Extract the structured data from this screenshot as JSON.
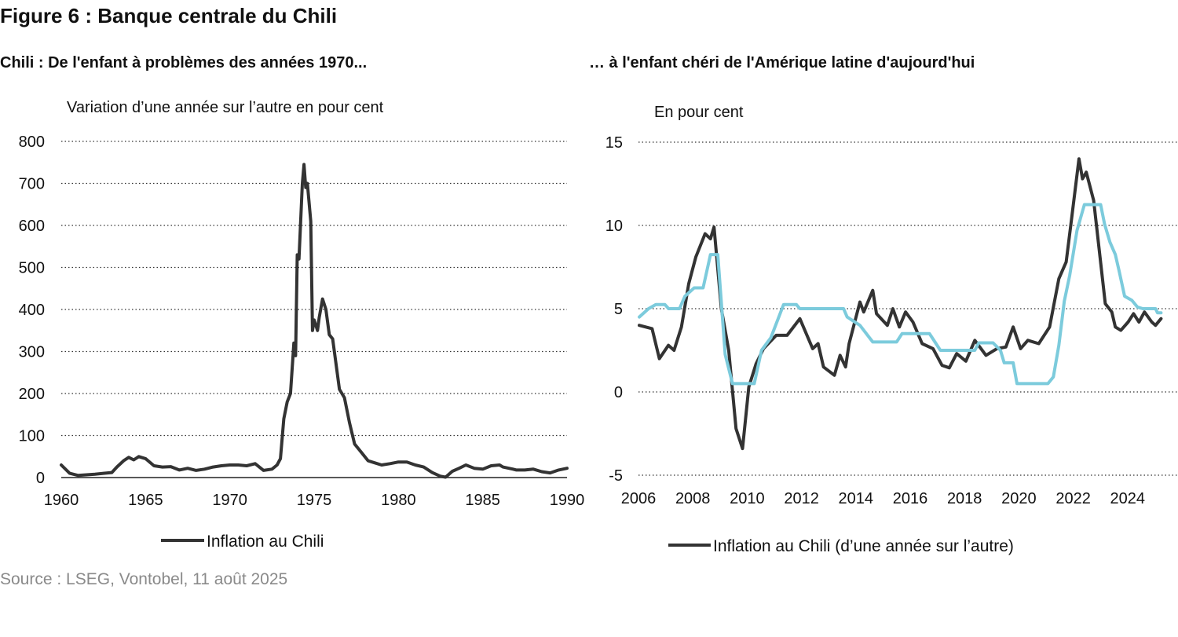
{
  "figure_title": "Figure 6 : Banque centrale du Chili",
  "source": "Source : LSEG, Vontobel, 11 août 2025",
  "chart_data": [
    {
      "type": "line",
      "title": "Chili : De l'enfant à problèmes des années 1970...",
      "ylabel": "Variation d’une année sur l’autre en pour cent",
      "xlim": [
        1960,
        1990
      ],
      "ylim": [
        0,
        800
      ],
      "xticks": [
        1960,
        1965,
        1970,
        1975,
        1980,
        1985,
        1990
      ],
      "yticks": [
        0,
        100,
        200,
        300,
        400,
        500,
        600,
        700,
        800
      ],
      "grid": true,
      "legend_position": "bottom",
      "series": [
        {
          "name": "Inflation au Chili",
          "color": "#333333",
          "x": [
            1960,
            1960.5,
            1961,
            1962,
            1962.5,
            1963,
            1963.3,
            1963.7,
            1964,
            1964.3,
            1964.6,
            1965,
            1965.5,
            1966,
            1966.5,
            1967,
            1967.5,
            1968,
            1968.5,
            1969,
            1969.5,
            1970,
            1970.5,
            1971,
            1971.5,
            1972,
            1972.5,
            1972.8,
            1973.0,
            1973.2,
            1973.4,
            1973.6,
            1973.8,
            1973.9,
            1974.0,
            1974.1,
            1974.3,
            1974.4,
            1974.5,
            1974.6,
            1974.8,
            1974.9,
            1975.0,
            1975.2,
            1975.3,
            1975.5,
            1975.7,
            1975.9,
            1976.1,
            1976.3,
            1976.5,
            1976.8,
            1977.1,
            1977.4,
            1977.8,
            1978.2,
            1978.6,
            1979,
            1979.5,
            1980,
            1980.5,
            1981,
            1981.5,
            1982,
            1982.5,
            1982.8,
            1983.2,
            1983.6,
            1984,
            1984.5,
            1985,
            1985.5,
            1986,
            1986.2,
            1986.8,
            1987,
            1987.5,
            1988,
            1988.5,
            1989,
            1989.5,
            1990
          ],
          "y": [
            30,
            10,
            5,
            8,
            10,
            12,
            25,
            40,
            48,
            42,
            50,
            45,
            28,
            25,
            26,
            18,
            22,
            17,
            20,
            25,
            28,
            30,
            30,
            28,
            33,
            17,
            20,
            30,
            45,
            140,
            180,
            200,
            320,
            290,
            530,
            520,
            700,
            745,
            690,
            700,
            610,
            350,
            375,
            350,
            380,
            425,
            400,
            340,
            330,
            270,
            210,
            190,
            130,
            80,
            60,
            40,
            35,
            30,
            33,
            37,
            37,
            30,
            25,
            12,
            3,
            1,
            15,
            22,
            30,
            22,
            20,
            28,
            30,
            25,
            20,
            18,
            18,
            20,
            14,
            11,
            18,
            22
          ]
        }
      ]
    },
    {
      "type": "line",
      "title": "… à l'enfant chéri de l'Amérique latine d'aujourd'hui",
      "ylabel": "En pour cent",
      "xlim": [
        2006,
        2026
      ],
      "ylim": [
        -5,
        15
      ],
      "xticks": [
        2006,
        2008,
        2010,
        2012,
        2014,
        2016,
        2018,
        2020,
        2022,
        2024
      ],
      "yticks": [
        -5,
        0,
        5,
        10,
        15
      ],
      "grid": true,
      "legend_position": "bottom",
      "series": [
        {
          "name": "Inflation au Chili (d’une année sur l’autre)",
          "color": "#333333",
          "x": [
            2006.03,
            2006.5,
            2006.77,
            2007.1,
            2007.31,
            2007.58,
            2007.85,
            2008.11,
            2008.45,
            2008.65,
            2008.78,
            2009.05,
            2009.32,
            2009.59,
            2009.83,
            2010.06,
            2010.33,
            2010.6,
            2011.07,
            2011.47,
            2011.94,
            2012.41,
            2012.61,
            2012.81,
            2013.21,
            2013.42,
            2013.62,
            2013.75,
            2014.15,
            2014.29,
            2014.62,
            2014.76,
            2015.16,
            2015.36,
            2015.6,
            2015.83,
            2016.1,
            2016.44,
            2016.84,
            2017.17,
            2017.44,
            2017.71,
            2018.05,
            2018.38,
            2018.79,
            2019.19,
            2019.52,
            2019.79,
            2020.06,
            2020.33,
            2020.73,
            2021.13,
            2021.47,
            2021.74,
            2021.94,
            2022.21,
            2022.34,
            2022.48,
            2022.75,
            2023.18,
            2023.42,
            2023.55,
            2023.75,
            2024.02,
            2024.22,
            2024.42,
            2024.62,
            2024.89,
            2025.03,
            2025.23
          ],
          "y": [
            4.0,
            3.8,
            2.0,
            2.8,
            2.5,
            3.9,
            6.5,
            8.1,
            9.5,
            9.2,
            9.9,
            5.0,
            2.5,
            -2.2,
            -3.4,
            0.3,
            1.7,
            2.6,
            3.4,
            3.4,
            4.4,
            2.6,
            2.9,
            1.5,
            1.0,
            2.2,
            1.5,
            2.9,
            5.4,
            4.8,
            6.1,
            4.7,
            4.0,
            5.0,
            3.9,
            4.8,
            4.2,
            2.9,
            2.6,
            1.6,
            1.45,
            2.3,
            1.85,
            3.1,
            2.2,
            2.6,
            2.7,
            3.9,
            2.6,
            3.1,
            2.9,
            3.9,
            6.8,
            7.8,
            10.4,
            14.0,
            12.8,
            13.2,
            11.5,
            5.3,
            4.8,
            3.9,
            3.7,
            4.2,
            4.7,
            4.2,
            4.8,
            4.2,
            4.0,
            4.4
          ]
        },
        {
          "color": "#7ccbdc",
          "step": true,
          "x": [
            2006.03,
            2006.37,
            2006.64,
            2006.97,
            2007.11,
            2007.51,
            2007.71,
            2008.05,
            2008.38,
            2008.65,
            2008.92,
            2009.19,
            2009.46,
            2010.26,
            2010.53,
            2010.87,
            2011.34,
            2011.81,
            2011.94,
            2013.55,
            2013.68,
            2014.15,
            2014.62,
            2015.5,
            2015.7,
            2016.71,
            2016.91,
            2017.11,
            2018.38,
            2018.52,
            2019.05,
            2019.32,
            2019.46,
            2019.79,
            2019.93,
            2021.07,
            2021.27,
            2021.47,
            2021.67,
            2021.87,
            2022.14,
            2022.41,
            2023.01,
            2023.15,
            2023.35,
            2023.55,
            2023.69,
            2023.89,
            2024.16,
            2024.36,
            2024.56,
            2025.03,
            2025.1,
            2025.23
          ],
          "y": [
            4.5,
            5.0,
            5.25,
            5.25,
            5.0,
            5.0,
            5.75,
            6.25,
            6.25,
            8.25,
            8.25,
            2.25,
            0.5,
            0.5,
            2.5,
            3.25,
            5.25,
            5.25,
            5.0,
            5.0,
            4.5,
            4.0,
            3.0,
            3.0,
            3.5,
            3.5,
            3.0,
            2.5,
            2.5,
            2.95,
            2.95,
            2.5,
            1.75,
            1.75,
            0.5,
            0.5,
            0.9,
            2.8,
            5.45,
            7.0,
            9.7,
            11.25,
            11.25,
            10.1,
            9.0,
            8.25,
            7.25,
            5.75,
            5.5,
            5.1,
            5.0,
            5.0,
            4.75,
            4.75
          ]
        }
      ]
    }
  ]
}
